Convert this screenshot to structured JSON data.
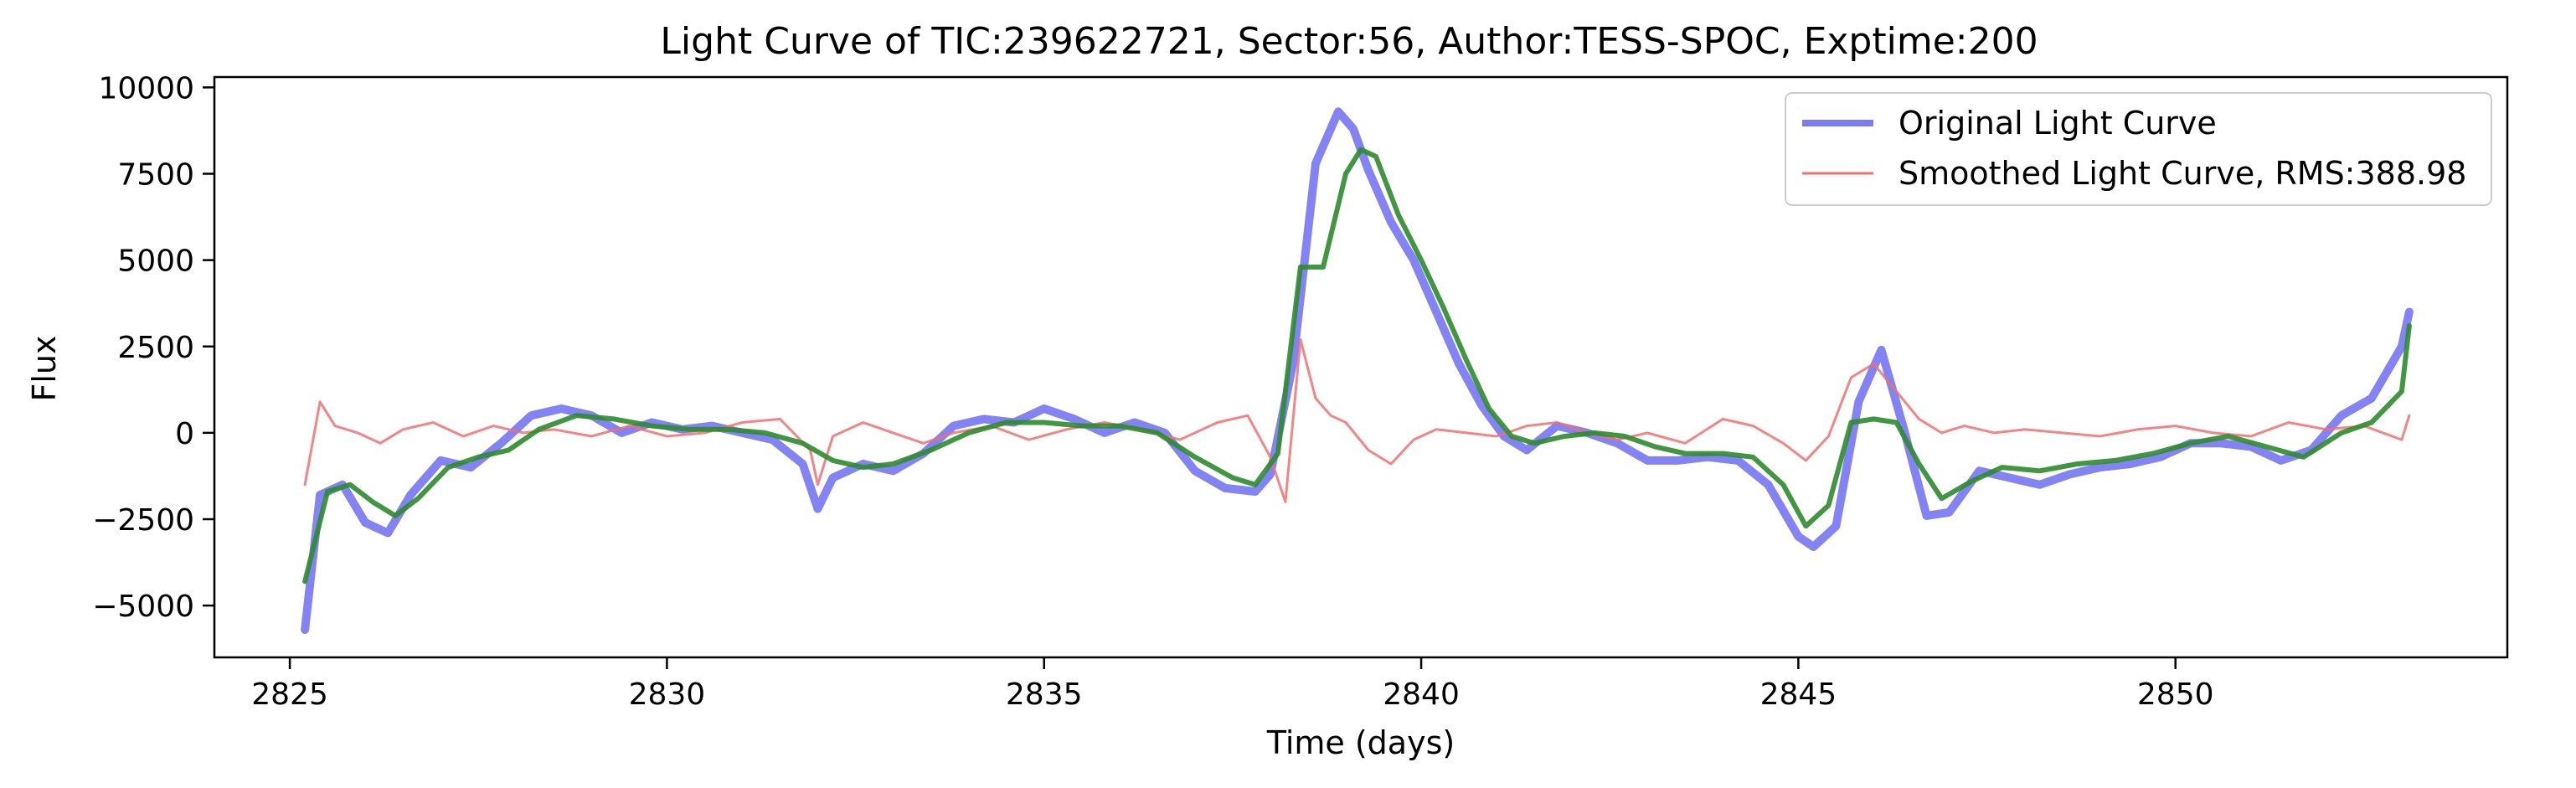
{
  "chart_data": {
    "type": "line",
    "title": "Light Curve of TIC:239622721, Sector:56, Author:TESS-SPOC, Exptime:200",
    "xlabel": "Time (days)",
    "ylabel": "Flux",
    "xlim": [
      2824.0,
      2854.4
    ],
    "ylim": [
      -6500,
      10300
    ],
    "x_ticks": [
      2825,
      2830,
      2835,
      2840,
      2845,
      2850
    ],
    "x_tick_labels": [
      "2825",
      "2830",
      "2835",
      "2840",
      "2845",
      "2850"
    ],
    "y_ticks": [
      -5000,
      -2500,
      0,
      2500,
      5000,
      7500,
      10000
    ],
    "y_tick_labels": [
      "−5000",
      "−2500",
      "0",
      "2500",
      "5000",
      "7500",
      "10000"
    ],
    "grid": false,
    "legend_position": "top-right",
    "series": [
      {
        "name": "Original Light Curve",
        "color": "#6464f0",
        "x": [
          2825.2,
          2825.4,
          2825.7,
          2826.0,
          2826.3,
          2826.6,
          2827.0,
          2827.4,
          2827.8,
          2828.2,
          2828.6,
          2829.0,
          2829.4,
          2829.8,
          2830.2,
          2830.6,
          2831.0,
          2831.4,
          2831.8,
          2832.0,
          2832.2,
          2832.6,
          2833.0,
          2833.4,
          2833.8,
          2834.2,
          2834.6,
          2835.0,
          2835.4,
          2835.8,
          2836.2,
          2836.6,
          2837.0,
          2837.4,
          2837.8,
          2838.0,
          2838.3,
          2838.6,
          2838.9,
          2839.1,
          2839.3,
          2839.6,
          2839.9,
          2840.2,
          2840.5,
          2840.8,
          2841.1,
          2841.4,
          2841.8,
          2842.2,
          2842.6,
          2843.0,
          2843.4,
          2843.8,
          2844.2,
          2844.6,
          2845.0,
          2845.2,
          2845.5,
          2845.8,
          2846.1,
          2846.4,
          2846.7,
          2847.0,
          2847.4,
          2847.8,
          2848.2,
          2848.6,
          2849.0,
          2849.4,
          2849.8,
          2850.2,
          2850.6,
          2851.0,
          2851.4,
          2851.8,
          2852.2,
          2852.6,
          2853.0,
          2853.1
        ],
        "values": [
          -5700,
          -1800,
          -1500,
          -2600,
          -2900,
          -1800,
          -800,
          -1000,
          -300,
          500,
          700,
          500,
          0,
          300,
          100,
          200,
          0,
          -200,
          -900,
          -2200,
          -1300,
          -900,
          -1100,
          -600,
          200,
          400,
          300,
          700,
          400,
          0,
          300,
          0,
          -1100,
          -1600,
          -1700,
          -1200,
          2000,
          7800,
          9300,
          8800,
          7600,
          6100,
          5000,
          3500,
          2000,
          800,
          -100,
          -500,
          200,
          0,
          -300,
          -800,
          -800,
          -700,
          -800,
          -1500,
          -3000,
          -3300,
          -2700,
          900,
          2400,
          100,
          -2400,
          -2300,
          -1100,
          -1300,
          -1500,
          -1200,
          -1000,
          -900,
          -700,
          -300,
          -300,
          -400,
          -800,
          -500,
          500,
          1000,
          2500,
          3500
        ]
      },
      {
        "name": "Smoothed Light Curve, RMS:388.98",
        "color": "#f07070",
        "x": [
          2825.2,
          2825.4,
          2825.6,
          2825.9,
          2826.2,
          2826.5,
          2826.9,
          2827.3,
          2827.7,
          2828.1,
          2828.5,
          2829.0,
          2829.5,
          2830.0,
          2830.5,
          2831.0,
          2831.5,
          2831.9,
          2832.0,
          2832.2,
          2832.6,
          2833.0,
          2833.4,
          2833.8,
          2834.3,
          2834.8,
          2835.3,
          2835.8,
          2836.3,
          2836.8,
          2837.3,
          2837.7,
          2838.0,
          2838.2,
          2838.4,
          2838.6,
          2838.8,
          2839.0,
          2839.3,
          2839.6,
          2839.9,
          2840.2,
          2840.6,
          2841.0,
          2841.4,
          2841.8,
          2842.2,
          2842.6,
          2843.0,
          2843.5,
          2844.0,
          2844.4,
          2844.8,
          2845.1,
          2845.4,
          2845.7,
          2846.0,
          2846.3,
          2846.6,
          2846.9,
          2847.2,
          2847.6,
          2848.0,
          2848.5,
          2849.0,
          2849.5,
          2850.0,
          2850.5,
          2851.0,
          2851.5,
          2852.0,
          2852.5,
          2853.0,
          2853.1
        ],
        "values": [
          -1500,
          900,
          200,
          0,
          -300,
          100,
          300,
          -100,
          200,
          0,
          100,
          -100,
          200,
          -100,
          0,
          300,
          400,
          -500,
          -1500,
          -100,
          300,
          0,
          -300,
          0,
          200,
          -200,
          100,
          300,
          100,
          -200,
          300,
          500,
          -700,
          -2000,
          2700,
          1000,
          500,
          300,
          -500,
          -900,
          -200,
          100,
          0,
          -100,
          200,
          300,
          0,
          -200,
          0,
          -300,
          400,
          200,
          -300,
          -800,
          -100,
          1600,
          2000,
          1200,
          400,
          0,
          200,
          0,
          100,
          0,
          -100,
          100,
          200,
          0,
          -100,
          300,
          100,
          200,
          -200,
          500
        ]
      },
      {
        "name": "",
        "color": "#2e8b2e",
        "x": [
          2825.2,
          2825.5,
          2825.8,
          2826.1,
          2826.4,
          2826.7,
          2827.1,
          2827.5,
          2827.9,
          2828.3,
          2828.8,
          2829.3,
          2829.8,
          2830.3,
          2830.8,
          2831.3,
          2831.8,
          2832.2,
          2832.6,
          2833.0,
          2833.5,
          2834.0,
          2834.5,
          2835.0,
          2835.5,
          2836.0,
          2836.5,
          2837.0,
          2837.5,
          2837.8,
          2838.1,
          2838.4,
          2838.7,
          2839.0,
          2839.2,
          2839.4,
          2839.7,
          2840.0,
          2840.3,
          2840.6,
          2840.9,
          2841.2,
          2841.5,
          2841.9,
          2842.3,
          2842.7,
          2843.1,
          2843.5,
          2844.0,
          2844.4,
          2844.8,
          2845.1,
          2845.4,
          2845.7,
          2846.0,
          2846.3,
          2846.6,
          2846.9,
          2847.3,
          2847.7,
          2848.2,
          2848.7,
          2849.2,
          2849.7,
          2850.2,
          2850.7,
          2851.2,
          2851.7,
          2852.2,
          2852.6,
          2853.0,
          2853.1
        ],
        "values": [
          -4300,
          -1700,
          -1500,
          -2000,
          -2400,
          -1900,
          -1000,
          -700,
          -500,
          100,
          500,
          400,
          200,
          100,
          100,
          0,
          -300,
          -800,
          -1000,
          -900,
          -500,
          0,
          300,
          300,
          200,
          200,
          0,
          -700,
          -1300,
          -1500,
          -600,
          4800,
          4800,
          7500,
          8200,
          8000,
          6300,
          5000,
          3600,
          2100,
          700,
          -100,
          -300,
          -100,
          0,
          -100,
          -400,
          -600,
          -600,
          -700,
          -1500,
          -2700,
          -2100,
          300,
          400,
          300,
          -900,
          -1900,
          -1400,
          -1000,
          -1100,
          -900,
          -800,
          -600,
          -300,
          -100,
          -400,
          -700,
          0,
          300,
          1200,
          3100
        ]
      }
    ]
  }
}
